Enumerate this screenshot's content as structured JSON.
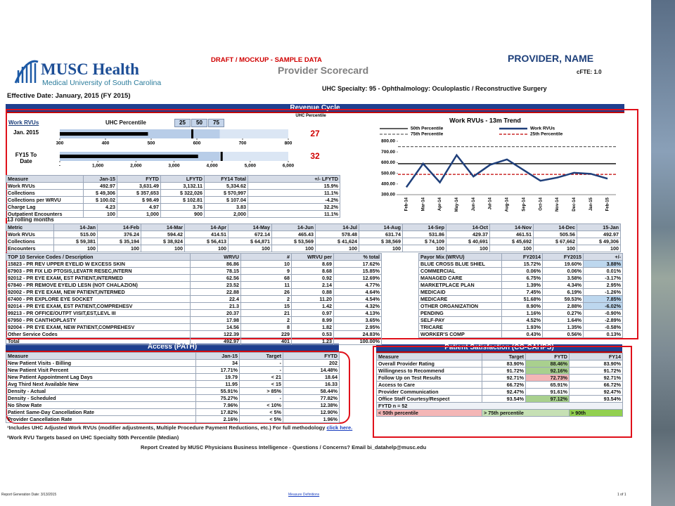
{
  "header": {
    "logo_name": "MUSC Health",
    "logo_sub": "Medical University of South Carolina",
    "draft": "DRAFT / MOCKUP  - SAMPLE DATA",
    "title": "Provider Scorecard",
    "provider": "PROVIDER, NAME",
    "cfte": "cFTE: 1.0",
    "effective": "Effective Date: January, 2015 (FY 2015)",
    "specialty": "UHC Specialty: 95 - Ophthalmology: Oculoplastic / Reconstructive Surgery"
  },
  "revenue": {
    "title": "Revenue Cycle",
    "percentile": {
      "label": "Work RVUs",
      "scale_title": "UHC Percentile",
      "scale": [
        "25",
        "50",
        "75"
      ],
      "column_title": "UHC Percentile",
      "rows": [
        {
          "label": "Jan. 2015",
          "value": 492.97,
          "marker": 590,
          "percentile": 27,
          "xlim": [
            300,
            800
          ],
          "xticks": [
            300,
            400,
            500,
            600,
            700,
            800
          ]
        },
        {
          "label": "FY15 To Date",
          "value": 3631.49,
          "marker": 4250,
          "percentile": 32,
          "xlim": [
            0,
            6000
          ],
          "xticks": [
            {
              "value": 0,
              "label": "-"
            },
            {
              "value": 1000,
              "label": "1,000"
            },
            {
              "value": 2000,
              "label": "2,000"
            },
            {
              "value": 3000,
              "label": "3,000"
            },
            {
              "value": 4000,
              "label": "4,000"
            },
            {
              "value": 5000,
              "label": "5,000"
            },
            {
              "value": 6000,
              "label": "6,000"
            }
          ]
        }
      ]
    },
    "measures": {
      "header": [
        "Measure",
        "Jan-15",
        "FYTD",
        "LFYTD",
        "FY14 Total",
        "+/- LFYTD"
      ],
      "rows": [
        [
          "Work RVUs",
          "492.97",
          "3,631.49",
          "3,132.11",
          "5,334.62",
          "15.9%"
        ],
        [
          "Collections",
          "$ 49,306",
          "$ 357,653",
          "$ 322,026",
          "$ 570,997",
          "11.1%"
        ],
        [
          "Collections per WRVU",
          "$ 100.02",
          "$ 98.49",
          "$ 102.81",
          "$ 107.04",
          "-4.2%"
        ],
        [
          "Charge Lag",
          "4.23",
          "4.97",
          "3.76",
          "3.83",
          "32.2%"
        ],
        [
          "Outpatient Encounters",
          "100",
          "1,000",
          "900",
          "2,000",
          "11.1%"
        ]
      ]
    },
    "rolling": {
      "caption": "13 rolling months",
      "header": [
        "Metric",
        "14-Jan",
        "14-Feb",
        "14-Mar",
        "14-Apr",
        "14-May",
        "14-Jun",
        "14-Jul",
        "14-Aug",
        "14-Sep",
        "14-Oct",
        "14-Nov",
        "14-Dec",
        "15-Jan"
      ],
      "rows": [
        [
          "Work RVUs",
          "515.00",
          "376.24",
          "594.42",
          "414.51",
          "672.14",
          "465.43",
          "578.48",
          "631.74",
          "531.86",
          "429.37",
          "461.51",
          "505.56",
          "492.97"
        ],
        [
          "Collections",
          "$ 59,381",
          "$ 35,194",
          "$ 38,924",
          "$ 56,413",
          "$ 64,871",
          "$ 53,569",
          "$ 41,624",
          "$ 38,569",
          "$ 74,109",
          "$ 40,691",
          "$ 45,692",
          "$ 67,662",
          "$ 49,306"
        ],
        [
          "Encounters",
          "100",
          "100",
          "100",
          "100",
          "100",
          "100",
          "100",
          "100",
          "100",
          "100",
          "100",
          "100",
          "100"
        ]
      ]
    },
    "top10": {
      "header": [
        "TOP 10 Service Codes / Description",
        "WRVU",
        "#",
        "WRVU per",
        "% total"
      ],
      "rows": [
        [
          "15823 - PR REV UPPER EYELID W EXCESS SKIN",
          "86.86",
          "10",
          "8.69",
          "17.62%"
        ],
        [
          "67903 - PR FIX LID PTOSIS,LEVATR RESEC,INTERN",
          "78.15",
          "9",
          "8.68",
          "15.85%"
        ],
        [
          "92012 - PR EYE EXAM, EST PATIENT,INTERMED",
          "62.56",
          "68",
          "0.92",
          "12.69%"
        ],
        [
          "67840 - PR REMOVE EYELID LESN (NOT CHALAZION)",
          "23.52",
          "11",
          "2.14",
          "4.77%"
        ],
        [
          "92002 - PR EYE EXAM, NEW PATIENT,INTERMED",
          "22.88",
          "26",
          "0.88",
          "4.64%"
        ],
        [
          "67400 - PR EXPLORE EYE SOCKET",
          "22.4",
          "2",
          "11.20",
          "4.54%"
        ],
        [
          "92014 - PR EYE EXAM, EST PATIENT,COMPREHESV",
          "21.3",
          "15",
          "1.42",
          "4.32%"
        ],
        [
          "99213 - PR OFFICE/OUTPT VISIT,EST,LEVL III",
          "20.37",
          "21",
          "0.97",
          "4.13%"
        ],
        [
          "67950 - PR CANTHOPLASTY",
          "17.98",
          "2",
          "8.99",
          "3.65%"
        ],
        [
          "92004 - PR EYE EXAM, NEW PATIENT,COMPREHESV",
          "14.56",
          "8",
          "1.82",
          "2.95%"
        ],
        [
          "Other Service Codes",
          "122.39",
          "229",
          "0.53",
          "24.83%"
        ],
        [
          "Total",
          "492.97",
          "401",
          "1.23",
          "100.00%"
        ]
      ]
    },
    "payor": {
      "header": [
        "Payor Mix (WRVU)",
        "FY2014",
        "FY2015",
        "+/-"
      ],
      "rows": [
        [
          "BLUE CROSS BLUE SHIEL",
          "15.72%",
          "19.60%",
          "3.88%"
        ],
        [
          "COMMERCIAL",
          "0.06%",
          "0.06%",
          "0.01%"
        ],
        [
          "MANAGED CARE",
          "6.75%",
          "3.58%",
          "-3.17%"
        ],
        [
          "MARKETPLACE PLAN",
          "1.39%",
          "4.34%",
          "2.95%"
        ],
        [
          "MEDICAID",
          "7.45%",
          "6.19%",
          "-1.26%"
        ],
        [
          "MEDICARE",
          "51.68%",
          "59.53%",
          "7.85%"
        ],
        [
          "OTHER ORGANIZATION",
          "8.90%",
          "2.88%",
          "-6.02%"
        ],
        [
          "PENDING",
          "1.16%",
          "0.27%",
          "-0.90%"
        ],
        [
          "SELF-PAY",
          "4.52%",
          "1.64%",
          "-2.89%"
        ],
        [
          "TRICARE",
          "1.93%",
          "1.35%",
          "-0.58%"
        ],
        [
          "WORKER'S COMP",
          "0.43%",
          "0.56%",
          "0.13%"
        ]
      ]
    }
  },
  "chart_data": {
    "type": "line",
    "title": "Work RVUs - 13m Trend",
    "categories": [
      "Feb-14",
      "Mar-14",
      "Apr-14",
      "May-14",
      "Jun-14",
      "Jul-14",
      "Aug-14",
      "Sep-14",
      "Oct-14",
      "Nov-14",
      "Dec-14",
      "Jan-15",
      "Feb-15"
    ],
    "series": [
      {
        "name": "Work RVUs",
        "color": "#1f3f7a",
        "values": [
          370,
          590,
          415,
          670,
          470,
          580,
          630,
          530,
          430,
          460,
          505,
          495,
          450
        ]
      }
    ],
    "reference_lines": [
      {
        "name": "50th Percentile",
        "value": 590,
        "color": "#000000",
        "dashed": false
      },
      {
        "name": "75th Percentile",
        "value": 750,
        "color": "#666666",
        "dashed": true
      },
      {
        "name": "25th Percentile",
        "value": 490,
        "color": "#c00000",
        "dashed": true
      }
    ],
    "ylim": [
      300,
      800
    ],
    "yticks": [
      {
        "value": 300,
        "label": "300.00"
      },
      {
        "value": 400,
        "label": "400.00"
      },
      {
        "value": 500,
        "label": "500.00"
      },
      {
        "value": 600,
        "label": "600.00"
      },
      {
        "value": 700,
        "label": "700.00"
      },
      {
        "value": 800,
        "label": "800.00"
      }
    ]
  },
  "access": {
    "title": "Access (PATH)",
    "header": [
      "Measure",
      "Jan-15",
      "Target",
      "FYTD"
    ],
    "rows": [
      [
        "New Patient Visits - Billing",
        "34",
        "-",
        "202"
      ],
      [
        "New Patient Visit Percent",
        "17.71%",
        "-",
        "14.48%"
      ],
      [
        "New Patient Appointment Lag Days",
        "19.79",
        "< 21",
        "18.64"
      ],
      [
        "Avg Third Next Available New",
        "11.95",
        "< 15",
        "16.33"
      ],
      [
        "Density - Actual",
        "55.91%",
        "> 85%",
        "58.44%"
      ],
      [
        "Density - Scheduled",
        "75.27%",
        "-",
        "77.82%"
      ],
      [
        "No Show Rate",
        "7.96%",
        "< 10%",
        "12.38%"
      ],
      [
        "Patient Same-Day Cancellation Rate",
        "17.82%",
        "< 5%",
        "12.90%"
      ],
      [
        "Provider Cancellation Rate",
        "2.16%",
        "< 5%",
        "1.96%"
      ]
    ]
  },
  "satisfaction": {
    "title": "Patient Satisfaction (CG-CAHPS)",
    "header": [
      "Measure",
      "Target",
      "FYTD",
      "FY14"
    ],
    "rows": [
      [
        "Overall Provider Rating",
        "83.90%",
        "88.46%",
        "83.90%"
      ],
      [
        "Willingness to Recommend",
        "91.72%",
        "92.16%",
        "91.72%"
      ],
      [
        "Follow Up on Test Results",
        "92.71%",
        "72.73%",
        "92.71%"
      ],
      [
        "Access to Care",
        "66.72%",
        "65.91%",
        "66.72%"
      ],
      [
        "Provider Communication",
        "92.47%",
        "91.61%",
        "92.47%"
      ],
      [
        "Office Staff Courtesy/Respect",
        "93.54%",
        "97.12%",
        "93.54%"
      ]
    ],
    "note": "FYTD n = 52",
    "legend": [
      "< 50th percentile",
      "> 75th percentile",
      "> 90th"
    ]
  },
  "footnotes": {
    "note1": "¹Includes UHC Adjusted Work RVUs (modifier adjustments, Multiple Procedure Payment Reductions, etc.)  For full methodology",
    "note1_link": "click here.",
    "note2": "²Work RVU Targets based on UHC Specialty 50th Percentile (Median)",
    "created": "Report Created by MUSC Physicians Business Intelligence - Questions / Concerns?  Email bi_datahelp@musc.edu",
    "generated": "Report Generation Date: 3/13/2015",
    "definitions": "Measure Definitions",
    "page": "1 of 1"
  }
}
